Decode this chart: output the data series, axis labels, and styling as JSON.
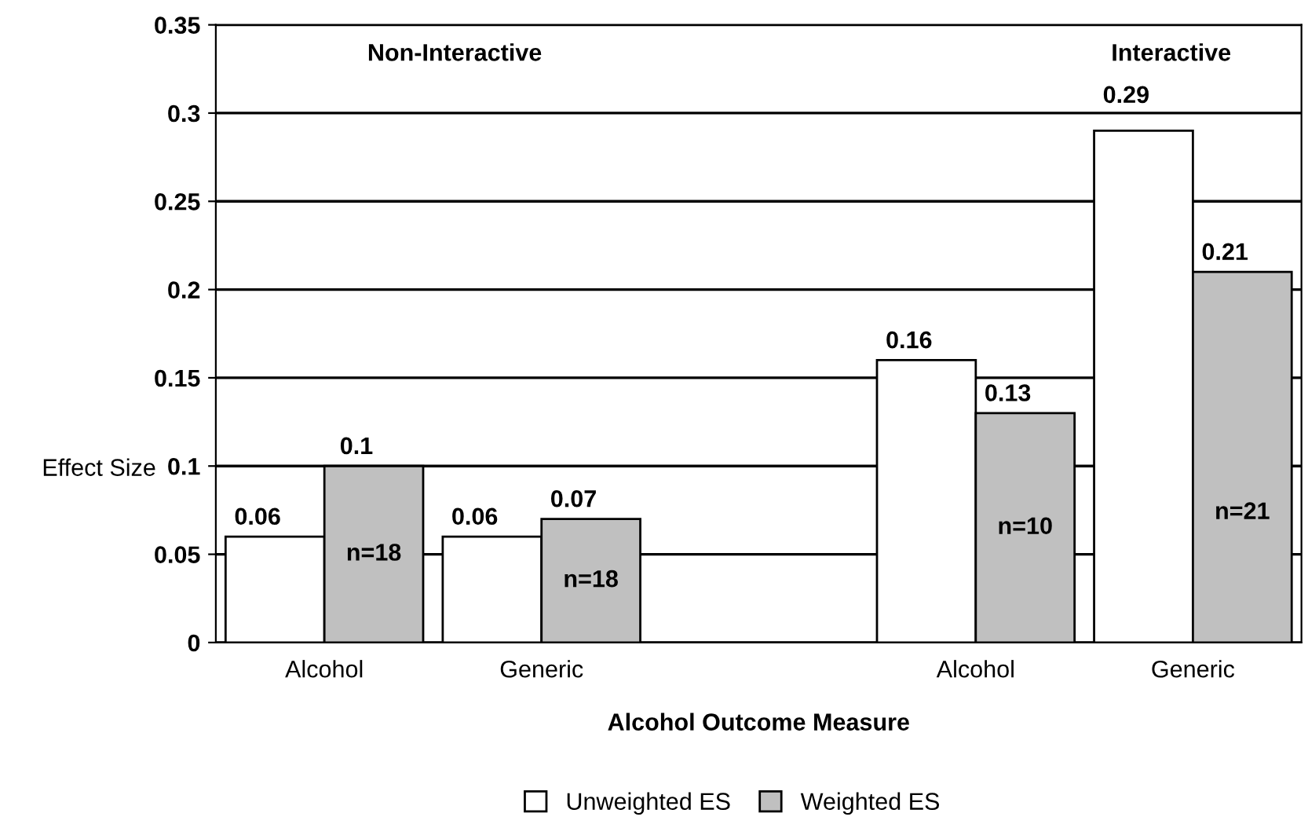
{
  "chart_data": {
    "type": "bar",
    "xlabel": "Alcohol Outcome Measure",
    "ylabel": "Effect Size",
    "categories": [
      "Alcohol",
      "Generic",
      null,
      "Alcohol",
      "Generic"
    ],
    "series": [
      {
        "name": "Unweighted ES",
        "color": "#ffffff",
        "values": [
          0.06,
          0.06,
          null,
          0.16,
          0.29
        ]
      },
      {
        "name": "Weighted ES",
        "color": "#c0c0c0",
        "values": [
          0.1,
          0.07,
          null,
          0.13,
          0.21
        ]
      }
    ],
    "ylim": [
      0,
      0.35
    ],
    "yticks": [
      {
        "value": 0,
        "label": "0"
      },
      0.05,
      {
        "value": 0.1,
        "label": "0.1"
      },
      0.15,
      {
        "value": 0.2,
        "label": "0.2"
      },
      0.25,
      {
        "value": 0.3,
        "label": "0.3"
      },
      0.35
    ],
    "grid": "y",
    "legend": "bottom",
    "data_labels": true,
    "annotations": [
      "Non-Interactive",
      "Interactive",
      "n=18",
      "n=18",
      "n=10",
      "n=21"
    ]
  }
}
